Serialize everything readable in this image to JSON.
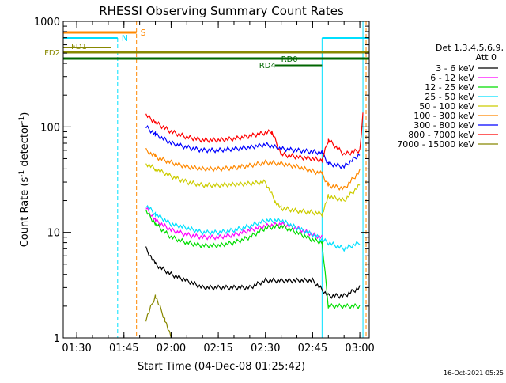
{
  "chart_data": {
    "type": "line",
    "title": "RHESSI Observing Summary Count Rates",
    "xlabel": "Start Time (04-Dec-08 01:25:42)",
    "ylabel_main": "Count Rate (s",
    "ylabel_sup1": "-1",
    "ylabel_mid": " detector",
    "ylabel_sup2": "-1",
    "ylabel_end": ")",
    "yscale": "log",
    "xlim": [
      "01:25:42",
      "03:03:00"
    ],
    "ylim": [
      1,
      1000
    ],
    "x_ticks": [
      "01:30",
      "01:45",
      "02:00",
      "02:15",
      "02:30",
      "02:45",
      "03:00"
    ],
    "y_ticks": [
      "1",
      "10",
      "100",
      "1000"
    ],
    "legend_header": "Det 1,3,4,5,6,9,",
    "legend_att": "Att 0",
    "legend_position": "right",
    "series": [
      {
        "name": "3 - 6 keV",
        "color": "#000000",
        "x": [
          "01:52",
          "01:55",
          "02:00",
          "02:05",
          "02:10",
          "02:15",
          "02:20",
          "02:25",
          "02:30",
          "02:35",
          "02:40",
          "02:45",
          "02:50",
          "02:55",
          "03:00"
        ],
        "y": [
          7,
          5,
          4,
          3.5,
          3,
          3,
          3,
          3,
          3.5,
          3.5,
          3.5,
          3.5,
          2.5,
          2.5,
          3
        ]
      },
      {
        "name": "6 - 12 keV",
        "color": "#ff00ff",
        "x": [
          "01:52",
          "01:55",
          "02:00",
          "02:05",
          "02:10",
          "02:15",
          "02:20",
          "02:25",
          "02:30",
          "02:35",
          "02:40",
          "02:45",
          "02:48"
        ],
        "y": [
          17,
          13,
          10.5,
          9.5,
          9,
          9,
          9.5,
          10.5,
          11.5,
          12,
          11,
          9.5,
          9
        ]
      },
      {
        "name": "12 - 25 keV",
        "color": "#00dd00",
        "x": [
          "01:52",
          "01:55",
          "02:00",
          "02:05",
          "02:10",
          "02:15",
          "02:20",
          "02:25",
          "02:30",
          "02:35",
          "02:40",
          "02:45",
          "02:48",
          "02:50",
          "02:55",
          "03:00"
        ],
        "y": [
          16,
          12,
          9,
          8,
          7.5,
          7.5,
          8,
          9,
          11,
          11.5,
          10,
          8.5,
          8,
          2,
          2,
          2
        ]
      },
      {
        "name": "25 - 50 keV",
        "color": "#00e0ff",
        "x": [
          "01:52",
          "01:55",
          "02:00",
          "02:05",
          "02:10",
          "02:15",
          "02:20",
          "02:25",
          "02:30",
          "02:35",
          "02:40",
          "02:45",
          "02:50",
          "02:55",
          "03:00"
        ],
        "y": [
          18,
          15,
          12,
          11,
          10,
          10,
          10.5,
          11.5,
          13,
          13,
          11,
          9.5,
          8,
          7,
          8
        ]
      },
      {
        "name": "50 - 100 keV",
        "color": "#cccc00",
        "x": [
          "01:52",
          "01:55",
          "02:00",
          "02:05",
          "02:10",
          "02:15",
          "02:20",
          "02:25",
          "02:30",
          "02:33",
          "02:35",
          "02:40",
          "02:45",
          "02:48",
          "02:50",
          "02:55",
          "03:00"
        ],
        "y": [
          45,
          40,
          34,
          30,
          28,
          28,
          28.5,
          29,
          30,
          20,
          17,
          16,
          15.5,
          15,
          22,
          20,
          28
        ]
      },
      {
        "name": "100 - 300 keV",
        "color": "#ff8800",
        "x": [
          "01:52",
          "01:55",
          "02:00",
          "02:05",
          "02:10",
          "02:15",
          "02:20",
          "02:25",
          "02:30",
          "02:35",
          "02:40",
          "02:45",
          "02:48",
          "02:50",
          "02:55",
          "03:00"
        ],
        "y": [
          60,
          52,
          46,
          42,
          40,
          40,
          41,
          43,
          46,
          45,
          42,
          38,
          36,
          28,
          26,
          38
        ]
      },
      {
        "name": "300 - 800 keV",
        "color": "#0000ff",
        "x": [
          "01:52",
          "01:55",
          "02:00",
          "02:05",
          "02:10",
          "02:15",
          "02:20",
          "02:25",
          "02:30",
          "02:35",
          "02:40",
          "02:45",
          "02:48",
          "02:50",
          "02:55",
          "03:00"
        ],
        "y": [
          100,
          85,
          70,
          64,
          60,
          60,
          62,
          64,
          68,
          62,
          60,
          58,
          57,
          45,
          42,
          55
        ]
      },
      {
        "name": "800 - 7000 keV",
        "color": "#ff0000",
        "x": [
          "01:52",
          "01:55",
          "02:00",
          "02:05",
          "02:10",
          "02:15",
          "02:20",
          "02:25",
          "02:30",
          "02:32",
          "02:35",
          "02:40",
          "02:45",
          "02:48",
          "02:50",
          "02:55",
          "03:00",
          "03:01"
        ],
        "y": [
          130,
          110,
          90,
          80,
          75,
          75,
          77,
          82,
          88,
          90,
          55,
          52,
          50,
          48,
          75,
          55,
          60,
          130
        ]
      },
      {
        "name": "7000 - 15000 keV",
        "color": "#888800",
        "x": [
          "01:52",
          "01:55",
          "01:58",
          "02:00"
        ],
        "y": [
          1.5,
          2.5,
          1.5,
          1
        ]
      }
    ],
    "annotations": {
      "S": "S",
      "N": "N",
      "FD1": "FD1",
      "FD2": "FD2",
      "RD0": "RD0",
      "RD4": "RD4"
    }
  },
  "footer_timestamp": "16-Oct-2021 05:25"
}
